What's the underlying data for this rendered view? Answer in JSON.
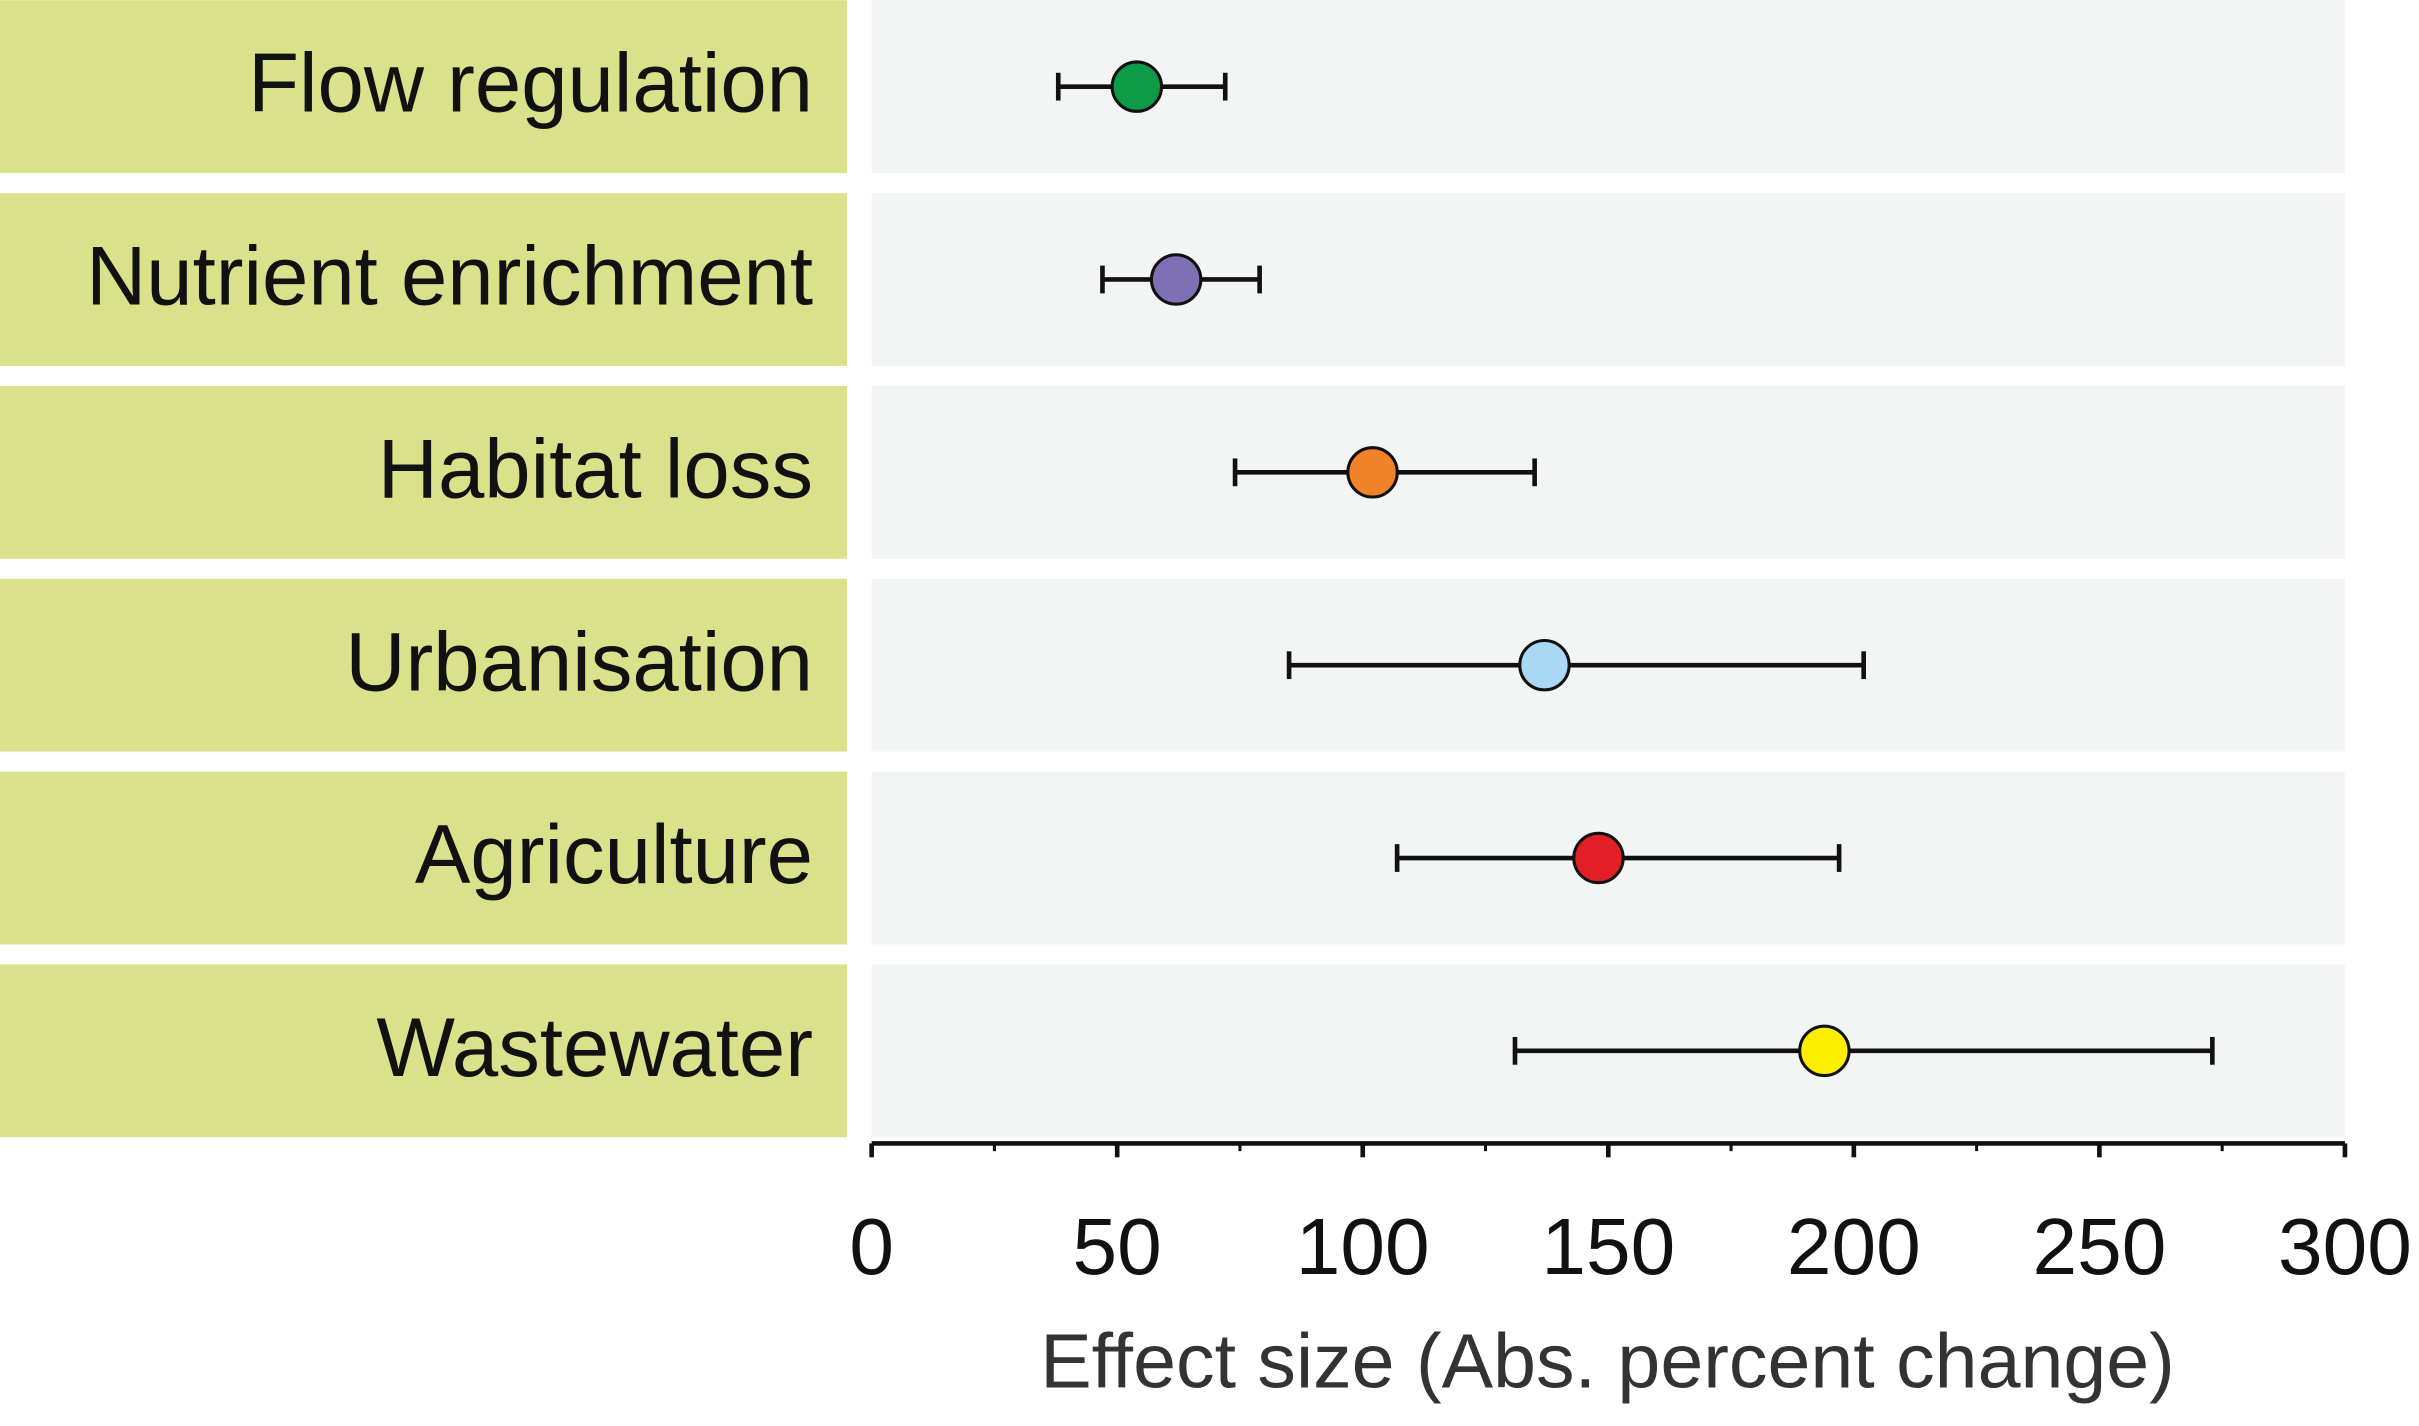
{
  "chart_data": {
    "type": "dot-errorbar",
    "categories": [
      "Flow regulation",
      "Nutrient enrichment",
      "Habitat loss",
      "Urbanisation",
      "Agriculture",
      "Wastewater"
    ],
    "values": [
      54,
      62,
      102,
      137,
      148,
      194
    ],
    "low": [
      38,
      47,
      74,
      85,
      107,
      131
    ],
    "high": [
      72,
      79,
      135,
      202,
      197,
      273
    ],
    "colors": [
      "#0f9a48",
      "#7f6fb4",
      "#f0822a",
      "#a9d8f4",
      "#e21f26",
      "#fded01"
    ],
    "xlim": [
      0,
      300
    ],
    "xticks": [
      0,
      50,
      100,
      150,
      200,
      250,
      300
    ],
    "minor_xticks": [
      25,
      75,
      125,
      175,
      225,
      275
    ],
    "xlabel": "Effect size (Abs. percent change)"
  }
}
